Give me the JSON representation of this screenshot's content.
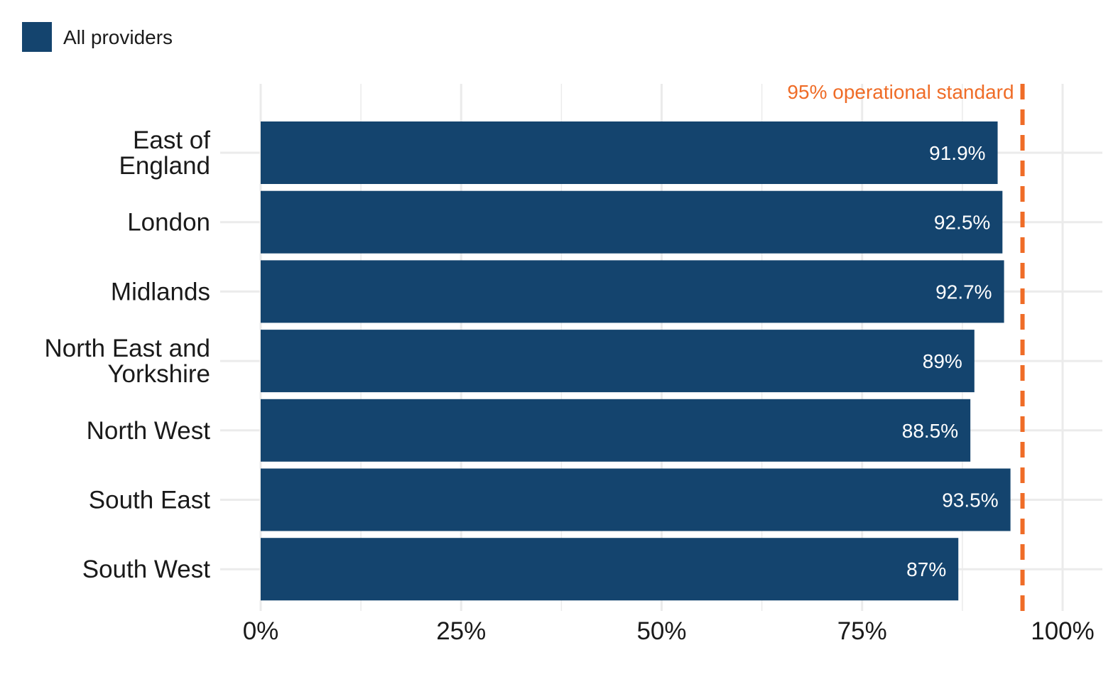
{
  "chart_data": {
    "type": "bar",
    "orientation": "horizontal",
    "categories": [
      "East of England",
      "London",
      "Midlands",
      "North East and Yorkshire",
      "North West",
      "South East",
      "South West"
    ],
    "category_label_lines": [
      [
        "East of",
        "England"
      ],
      [
        "London"
      ],
      [
        "Midlands"
      ],
      [
        "North East and",
        "Yorkshire"
      ],
      [
        "North West"
      ],
      [
        "South East"
      ],
      [
        "South West"
      ]
    ],
    "series": [
      {
        "name": "All providers",
        "values": [
          91.9,
          92.5,
          92.7,
          89,
          88.5,
          93.5,
          87
        ],
        "labels": [
          "91.9%",
          "92.5%",
          "92.7%",
          "89%",
          "88.5%",
          "93.5%",
          "87%"
        ],
        "color": "#14446e"
      }
    ],
    "xlim": [
      0,
      100
    ],
    "x_ticks": [
      0,
      25,
      50,
      75,
      100
    ],
    "x_tick_labels": [
      "0%",
      "25%",
      "50%",
      "75%",
      "100%"
    ],
    "reference_line": {
      "value": 95,
      "label": "95% operational standard",
      "color": "#ef6c27",
      "style": "dashed"
    },
    "legend": {
      "position": "top-left"
    },
    "grid": true,
    "grid_color": "#ebebeb",
    "xlabel": "",
    "ylabel": "",
    "title": ""
  }
}
